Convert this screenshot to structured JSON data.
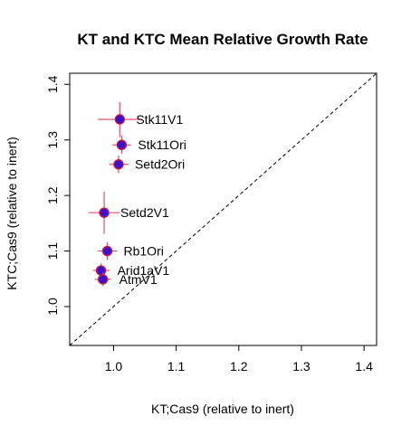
{
  "chart_data": {
    "type": "scatter",
    "title": "KT and KTC Mean Relative Growth Rate",
    "xlabel": "KT;Cas9 (relative to inert)",
    "ylabel": "KTC;Cas9 (relative to inert)",
    "xlim": [
      0.93,
      1.42
    ],
    "ylim": [
      0.93,
      1.42
    ],
    "xticks": [
      "1.0",
      "1.1",
      "1.2",
      "1.3",
      "1.4"
    ],
    "yticks": [
      "1.0",
      "1.1",
      "1.2",
      "1.3",
      "1.4"
    ],
    "reference_line": "y = x (dashed)",
    "grid": false,
    "point_color": "#3a10d6",
    "point_edge_color": "#c0163f",
    "errorbar_color": "#e0506a",
    "points": [
      {
        "label": "Stk11V1",
        "x": 1.01,
        "y": 1.337,
        "xerr": [
          0.975,
          1.045
        ],
        "yerr": [
          1.305,
          1.368
        ]
      },
      {
        "label": "Stk11Ori",
        "x": 1.013,
        "y": 1.291,
        "xerr": [
          0.998,
          1.028
        ],
        "yerr": [
          1.275,
          1.308
        ]
      },
      {
        "label": "Setd2Ori",
        "x": 1.008,
        "y": 1.256,
        "xerr": [
          0.993,
          1.024
        ],
        "yerr": [
          1.24,
          1.272
        ]
      },
      {
        "label": "Setd2V1",
        "x": 0.985,
        "y": 1.169,
        "xerr": [
          0.96,
          1.01
        ],
        "yerr": [
          1.131,
          1.207
        ]
      },
      {
        "label": "Rb1Ori",
        "x": 0.99,
        "y": 1.1,
        "xerr": [
          0.975,
          1.006
        ],
        "yerr": [
          1.084,
          1.116
        ]
      },
      {
        "label": "Arid1aV1",
        "x": 0.98,
        "y": 1.065,
        "xerr": [
          0.967,
          0.994
        ],
        "yerr": [
          1.052,
          1.078
        ]
      },
      {
        "label": "AtmV1",
        "x": 0.983,
        "y": 1.049,
        "xerr": [
          0.97,
          0.996
        ],
        "yerr": [
          1.037,
          1.061
        ]
      }
    ]
  }
}
